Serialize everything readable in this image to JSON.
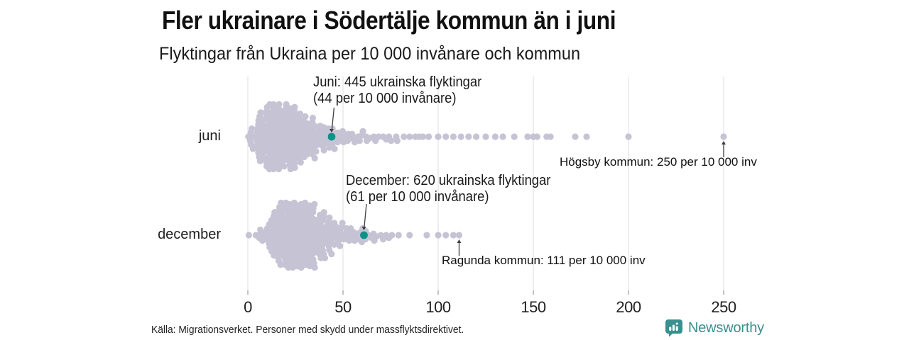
{
  "title": "Fler ukrainare i Södertälje kommun än i juni",
  "subtitle": "Flyktingar från Ukraina per 10 000 invånare och kommun",
  "source": "Källa: Migrationsverket. Personer med skydd under massflyktsdirektivet.",
  "logo": {
    "name": "Newsworthy",
    "color": "#3a8f8f"
  },
  "colors": {
    "dot": "#c6c4d4",
    "highlight": "#0c9286",
    "grid": "#dcdce0",
    "tick": "#9a9aa0",
    "arrow": "#3f3f3f"
  },
  "chart_data": {
    "type": "beeswarm",
    "title": "Fler ukrainare i Södertälje kommun än i juni",
    "subtitle": "Flyktingar från Ukraina per 10 000 invånare och kommun",
    "xlabel": "",
    "x_ticks": [
      0,
      50,
      100,
      150,
      200,
      250
    ],
    "xlim": [
      0,
      255
    ],
    "grid": true,
    "rows": [
      {
        "label": "juni",
        "highlight": {
          "value": 44,
          "annotation": [
            "Juni: 445 ukrainska flyktingar",
            "(44 per 10 000 invånare)"
          ]
        },
        "max_annotation": {
          "value": 250,
          "text": "Högsby kommun: 250 per 10 000 inv"
        },
        "histogram": {
          "start": 0,
          "bin_width": 5,
          "counts": [
            10,
            30,
            45,
            45,
            35,
            28,
            20,
            15,
            11,
            8,
            6,
            5,
            4,
            3,
            3,
            3
          ]
        },
        "singles": [
          82,
          85,
          88,
          90,
          92,
          95,
          100,
          104,
          108,
          112,
          116,
          120,
          125,
          130,
          134,
          140,
          147,
          150,
          152,
          157,
          159,
          172,
          178,
          200,
          250
        ]
      },
      {
        "label": "december",
        "highlight": {
          "value": 61,
          "annotation": [
            "December: 620 ukrainska flyktingar",
            "(61 per 10 000 invånare)"
          ]
        },
        "max_annotation": {
          "value": 111,
          "text": "Ragunda kommun: 111 per 10 000 inv"
        },
        "histogram": {
          "start": 0,
          "bin_width": 5,
          "counts": [
            2,
            6,
            20,
            38,
            45,
            48,
            40,
            28,
            18,
            12,
            9,
            6,
            5,
            4,
            3,
            2
          ]
        },
        "singles": [
          85,
          94,
          100,
          104,
          108,
          111
        ]
      }
    ]
  }
}
